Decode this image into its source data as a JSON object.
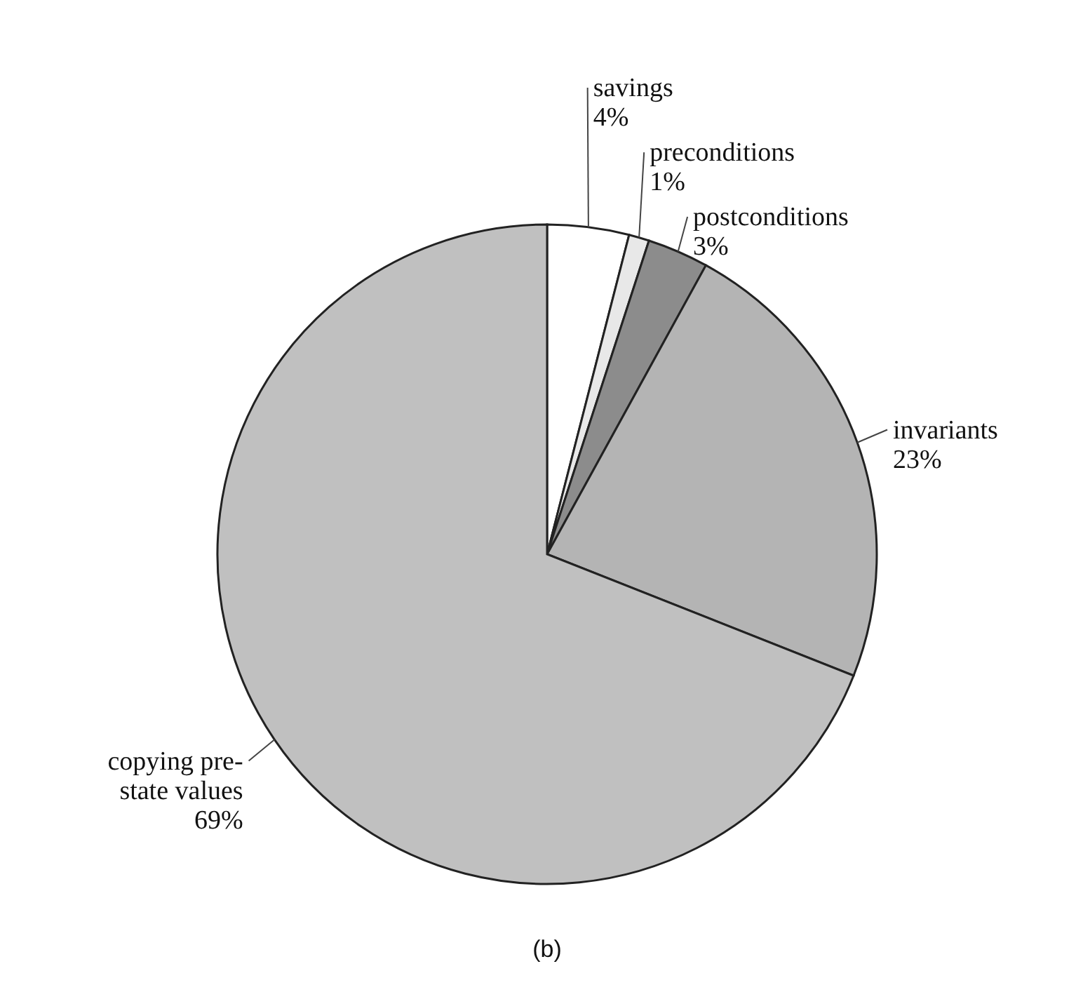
{
  "chart_data": {
    "type": "pie",
    "categories": [
      "savings",
      "preconditions",
      "postconditions",
      "invariants",
      "copying pre-state values"
    ],
    "values": [
      4,
      1,
      3,
      23,
      69
    ],
    "value_labels": [
      "4%",
      "1%",
      "3%",
      "23%",
      "69%"
    ],
    "colors": [
      "#ffffff",
      "#e8e8e8",
      "#8c8c8c",
      "#b4b4b4",
      "#c0c0c0"
    ],
    "annotations": [
      "(b)"
    ]
  }
}
